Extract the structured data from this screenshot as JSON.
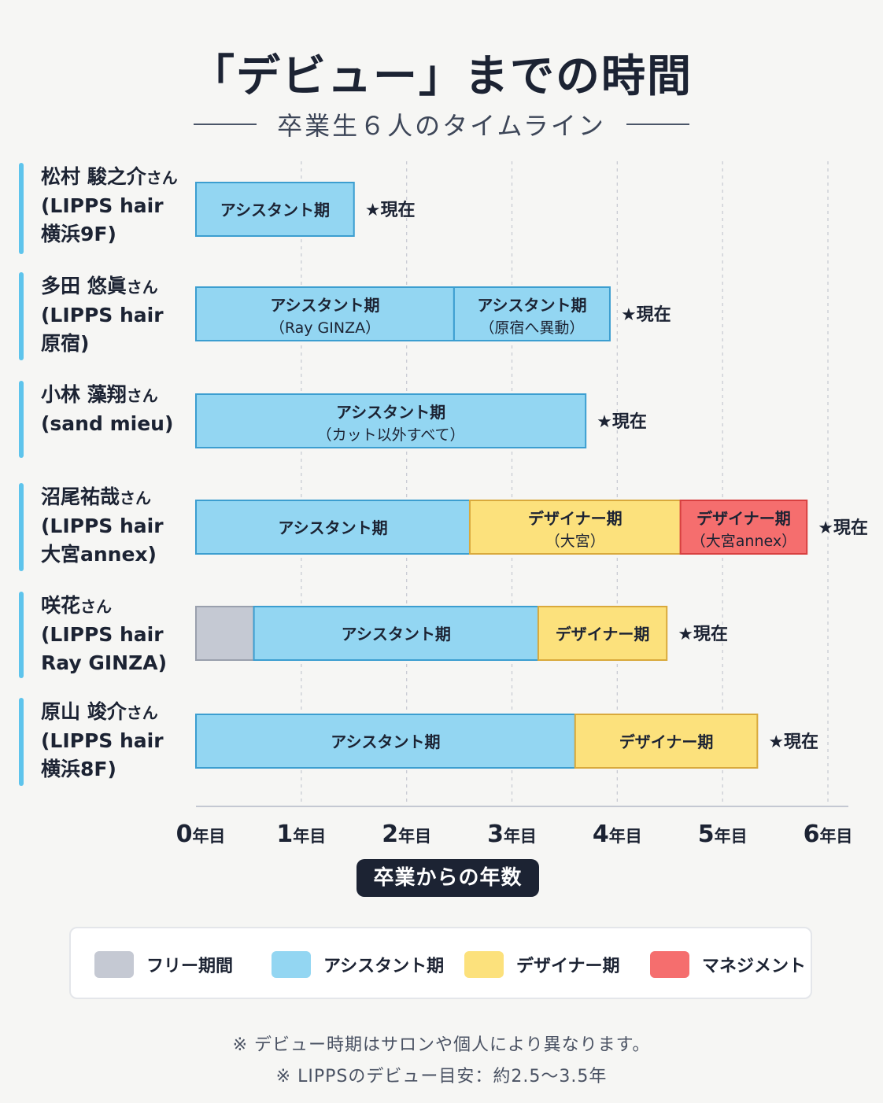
{
  "title": "「デビュー」までの時間",
  "subtitle": "卒業生６人のタイムライン",
  "colors": {
    "free": "#c5c9d3",
    "assistant": "#93d6f2",
    "designer": "#fce17c",
    "management": "#f56e6e",
    "name_accent": "#5ec4ec",
    "dark": "#1c2333"
  },
  "chart_data": {
    "type": "timeline",
    "xlabel": "卒業からの年数",
    "xlim": [
      0,
      6
    ],
    "ticks": [
      "0年目",
      "1年目",
      "2年目",
      "3年目",
      "4年目",
      "5年目",
      "6年目"
    ],
    "current_label": "★現在",
    "rows": [
      {
        "name": "松村 駿之介",
        "honorific": "さん",
        "affiliation": "(LIPPS hair\n横浜9F)",
        "segments": [
          {
            "type": "assistant",
            "start": 0,
            "end": 1.5,
            "label": "アシスタント期"
          }
        ]
      },
      {
        "name": "多田 悠眞",
        "honorific": "さん",
        "affiliation": "(LIPPS hair\n原宿)",
        "segments": [
          {
            "type": "assistant",
            "start": 0,
            "end": 2.45,
            "label": "アシスタント期",
            "sublabel": "（Ray GINZA）"
          },
          {
            "type": "assistant",
            "start": 2.45,
            "end": 3.93,
            "label": "アシスタント期",
            "sublabel": "（原宿へ異動）"
          }
        ]
      },
      {
        "name": "小林 藻翔",
        "honorific": "さん",
        "affiliation": "(sand mieu)",
        "segments": [
          {
            "type": "assistant",
            "start": 0,
            "end": 3.7,
            "label": "アシスタント期",
            "sublabel": "（カット以外すべて）"
          }
        ]
      },
      {
        "name": "沼尾祐哉",
        "honorific": "さん",
        "affiliation": "(LIPPS hair\n大宮annex)",
        "segments": [
          {
            "type": "assistant",
            "start": 0,
            "end": 2.6,
            "label": "アシスタント期"
          },
          {
            "type": "designer",
            "start": 2.6,
            "end": 4.6,
            "label": "デザイナー期",
            "sublabel": "（大宮）"
          },
          {
            "type": "management",
            "start": 4.6,
            "end": 5.8,
            "label": "デザイナー期",
            "sublabel": "（大宮annex）"
          }
        ]
      },
      {
        "name": "咲花",
        "honorific": "さん",
        "affiliation": "(LIPPS hair\nRay GINZA)",
        "segments": [
          {
            "type": "free",
            "start": 0,
            "end": 0.55,
            "label": ""
          },
          {
            "type": "assistant",
            "start": 0.55,
            "end": 3.25,
            "label": "アシスタント期"
          },
          {
            "type": "designer",
            "start": 3.25,
            "end": 4.47,
            "label": "デザイナー期"
          }
        ]
      },
      {
        "name": "原山 竣介",
        "honorific": "さん",
        "affiliation": "(LIPPS hair\n横浜8F)",
        "segments": [
          {
            "type": "assistant",
            "start": 0,
            "end": 3.6,
            "label": "アシスタント期"
          },
          {
            "type": "designer",
            "start": 3.6,
            "end": 5.33,
            "label": "デザイナー期"
          }
        ]
      }
    ]
  },
  "legend": [
    {
      "type": "free",
      "label": "フリー期間"
    },
    {
      "type": "assistant",
      "label": "アシスタント期"
    },
    {
      "type": "designer",
      "label": "デザイナー期"
    },
    {
      "type": "management",
      "label": "マネジメント"
    }
  ],
  "notes": [
    "※ デビュー時期はサロンや個人により異なります。",
    "※ LIPPSのデビュー目安：約2.5〜3.5年"
  ]
}
